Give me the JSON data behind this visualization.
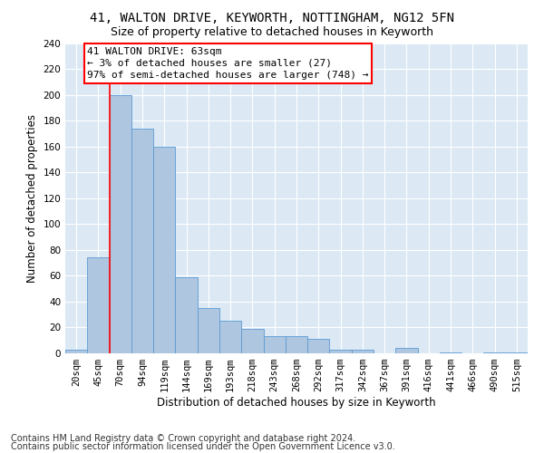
{
  "title1": "41, WALTON DRIVE, KEYWORTH, NOTTINGHAM, NG12 5FN",
  "title2": "Size of property relative to detached houses in Keyworth",
  "xlabel": "Distribution of detached houses by size in Keyworth",
  "ylabel": "Number of detached properties",
  "categories": [
    "20sqm",
    "45sqm",
    "70sqm",
    "94sqm",
    "119sqm",
    "144sqm",
    "169sqm",
    "193sqm",
    "218sqm",
    "243sqm",
    "268sqm",
    "292sqm",
    "317sqm",
    "342sqm",
    "367sqm",
    "391sqm",
    "416sqm",
    "441sqm",
    "466sqm",
    "490sqm",
    "515sqm"
  ],
  "values": [
    3,
    74,
    200,
    174,
    160,
    59,
    35,
    25,
    19,
    13,
    13,
    11,
    3,
    3,
    0,
    4,
    0,
    1,
    0,
    1,
    1
  ],
  "bar_color": "#aec6df",
  "bar_edge_color": "#5b9bd5",
  "annotation_box_text": "41 WALTON DRIVE: 63sqm\n← 3% of detached houses are smaller (27)\n97% of semi-detached houses are larger (748) →",
  "vline_x": 1.5,
  "ylim": [
    0,
    240
  ],
  "yticks": [
    0,
    20,
    40,
    60,
    80,
    100,
    120,
    140,
    160,
    180,
    200,
    220,
    240
  ],
  "footer1": "Contains HM Land Registry data © Crown copyright and database right 2024.",
  "footer2": "Contains public sector information licensed under the Open Government Licence v3.0.",
  "bg_color": "#dce9f5",
  "title_fontsize": 10,
  "subtitle_fontsize": 9,
  "axis_label_fontsize": 8.5,
  "tick_fontsize": 7.5,
  "footer_fontsize": 7,
  "annotation_fontsize": 8
}
